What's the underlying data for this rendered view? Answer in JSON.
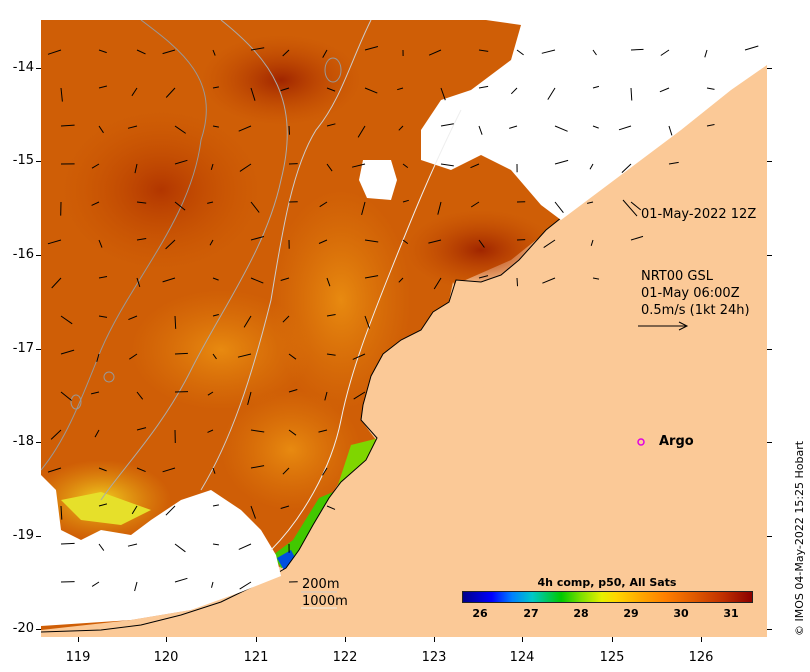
{
  "map": {
    "lat_ticks": [
      "-14",
      "-15",
      "-16",
      "-17",
      "-18",
      "-19",
      "-20"
    ],
    "lon_ticks": [
      "119",
      "120",
      "121",
      "122",
      "123",
      "124",
      "125",
      "126"
    ],
    "land_color": "#fbc997",
    "cloud_color": "#ffffff"
  },
  "annotations": {
    "timestamp": "01-May-2022 12Z",
    "current_source": "NRT00 GSL",
    "current_time": "01-May 06:00Z",
    "current_scale": "0.5m/s (1kt 24h)",
    "argo_label": "Argo",
    "depth_200": "200m",
    "depth_1000": "1000m"
  },
  "colorbar": {
    "title": "4h comp, p50, All Sats",
    "ticks": [
      "26",
      "27",
      "28",
      "29",
      "30",
      "31"
    ]
  },
  "credit": "© IMOS 04-May-2022 15:25 Hobart"
}
